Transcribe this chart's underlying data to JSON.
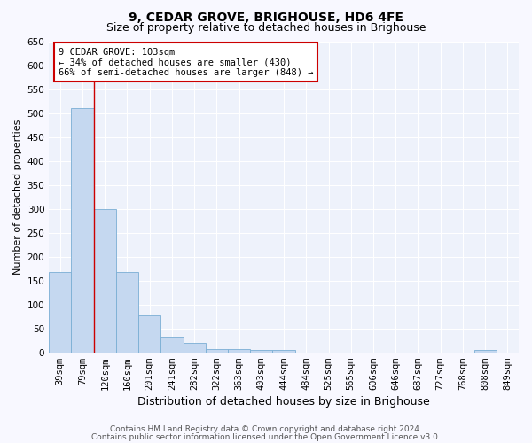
{
  "title": "9, CEDAR GROVE, BRIGHOUSE, HD6 4FE",
  "subtitle": "Size of property relative to detached houses in Brighouse",
  "xlabel": "Distribution of detached houses by size in Brighouse",
  "ylabel": "Number of detached properties",
  "categories": [
    "39sqm",
    "79sqm",
    "120sqm",
    "160sqm",
    "201sqm",
    "241sqm",
    "282sqm",
    "322sqm",
    "363sqm",
    "403sqm",
    "444sqm",
    "484sqm",
    "525sqm",
    "565sqm",
    "606sqm",
    "646sqm",
    "687sqm",
    "727sqm",
    "768sqm",
    "808sqm",
    "849sqm"
  ],
  "values": [
    167,
    510,
    300,
    167,
    78,
    32,
    20,
    7,
    6,
    5,
    5,
    0,
    0,
    0,
    0,
    0,
    0,
    0,
    0,
    5,
    0
  ],
  "bar_color": "#c5d8f0",
  "bar_edge_color": "#7aaed4",
  "ylim": [
    0,
    650
  ],
  "yticks": [
    0,
    50,
    100,
    150,
    200,
    250,
    300,
    350,
    400,
    450,
    500,
    550,
    600,
    650
  ],
  "red_line_x": 1.5,
  "annotation_text": "9 CEDAR GROVE: 103sqm\n← 34% of detached houses are smaller (430)\n66% of semi-detached houses are larger (848) →",
  "annotation_box_facecolor": "#ffffff",
  "annotation_box_edgecolor": "#cc0000",
  "bg_color": "#eef2fb",
  "grid_color": "#ffffff",
  "fig_bg": "#f8f8ff",
  "title_fontsize": 10,
  "subtitle_fontsize": 9,
  "xlabel_fontsize": 9,
  "ylabel_fontsize": 8,
  "tick_fontsize": 7.5,
  "annot_fontsize": 7.5,
  "footnote1": "Contains HM Land Registry data © Crown copyright and database right 2024.",
  "footnote2": "Contains public sector information licensed under the Open Government Licence v3.0.",
  "footnote_fontsize": 6.5
}
